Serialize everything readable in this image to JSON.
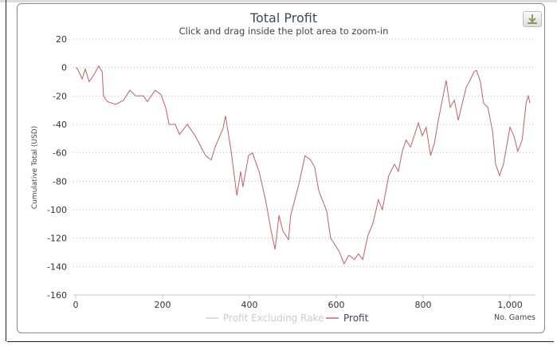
{
  "chart_data": {
    "type": "line",
    "title": "Total Profit",
    "subtitle": "Click and drag inside the plot area to zoom-in",
    "xlabel": "No. Games",
    "ylabel": "Cumulative Total (USD)",
    "xlim": [
      0,
      1060
    ],
    "ylim": [
      -160,
      20
    ],
    "xticks": [
      0,
      200,
      400,
      600,
      800,
      1000
    ],
    "xtick_labels": [
      "0",
      "200",
      "400",
      "600",
      "800",
      "1,000"
    ],
    "yticks": [
      20,
      0,
      -20,
      -40,
      -60,
      -80,
      -100,
      -120,
      -140,
      -160
    ],
    "grid": true,
    "legend_position": "bottom-center",
    "legend": [
      {
        "name": "Profit Excluding Rake",
        "color": "#cccccc",
        "hidden": true
      },
      {
        "name": "Profit",
        "color": "#c06060",
        "hidden": false
      }
    ],
    "series": [
      {
        "name": "Profit",
        "color": "#c06060",
        "x": [
          0,
          4,
          15,
          22,
          31,
          42,
          53,
          61,
          64,
          73,
          92,
          110,
          125,
          138,
          156,
          165,
          183,
          196,
          207,
          215,
          229,
          239,
          257,
          275,
          299,
          312,
          321,
          339,
          345,
          358,
          371,
          380,
          385,
          398,
          407,
          422,
          437,
          450,
          459,
          468,
          477,
          490,
          495,
          514,
          528,
          541,
          550,
          560,
          578,
          587,
          606,
          618,
          629,
          642,
          651,
          661,
          673,
          684,
          697,
          706,
          721,
          734,
          743,
          752,
          761,
          771,
          789,
          798,
          807,
          817,
          826,
          835,
          844,
          853,
          862,
          872,
          881,
          899,
          908,
          917,
          923,
          932,
          939,
          949,
          960,
          967,
          976,
          985,
          1000,
          1009,
          1018,
          1028,
          1037,
          1042,
          1046
        ],
        "y": [
          0,
          -1,
          -8,
          -1,
          -10,
          -5,
          1,
          -3,
          -20,
          -24,
          -26,
          -23,
          -16,
          -20,
          -20,
          -24,
          -16,
          -19,
          -28,
          -40,
          -40,
          -47,
          -40,
          -48,
          -62,
          -65,
          -56,
          -43,
          -34,
          -59,
          -90,
          -73,
          -84,
          -62,
          -60,
          -73,
          -93,
          -115,
          -128,
          -104,
          -115,
          -121,
          -104,
          -82,
          -62,
          -65,
          -70,
          -87,
          -101,
          -120,
          -129,
          -138,
          -132,
          -135,
          -131,
          -135,
          -118,
          -110,
          -93,
          -100,
          -76,
          -68,
          -73,
          -59,
          -51,
          -56,
          -39,
          -48,
          -42,
          -62,
          -53,
          -37,
          -23,
          -9,
          -28,
          -23,
          -37,
          -14,
          -9,
          -3,
          -2,
          -10,
          -25,
          -28,
          -45,
          -68,
          -76,
          -68,
          -42,
          -48,
          -59,
          -51,
          -25,
          -20,
          -25
        ]
      }
    ]
  },
  "toolbar": {
    "download_icon": "download-icon"
  }
}
